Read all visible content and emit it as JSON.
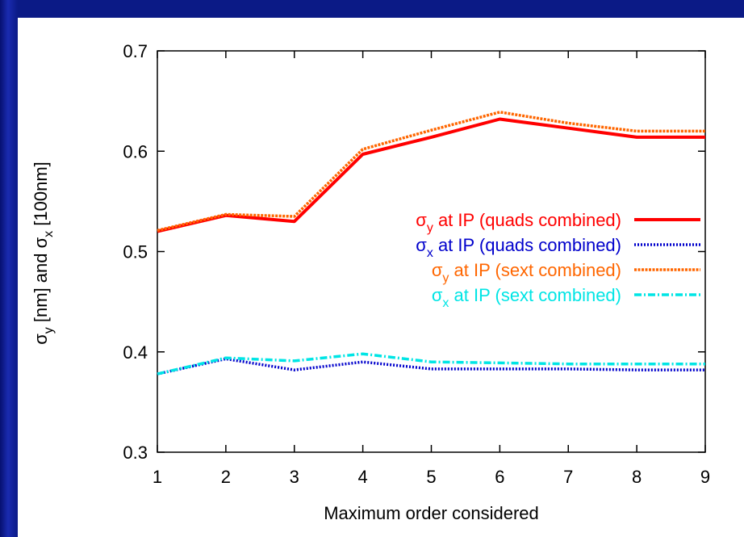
{
  "chart_data": {
    "type": "line",
    "title": "",
    "xlabel": "Maximum order considered",
    "ylabel_parts": [
      "σ",
      "y",
      " [nm] and  σ",
      "x",
      " [100nm]"
    ],
    "xlim": [
      1,
      9
    ],
    "ylim": [
      0.3,
      0.7
    ],
    "x_ticks": [
      1,
      2,
      3,
      4,
      5,
      6,
      7,
      8,
      9
    ],
    "y_ticks": [
      0.3,
      0.4,
      0.5,
      0.6,
      0.7
    ],
    "y_tick_labels": [
      "0.3",
      "0.4",
      "0.5",
      "0.6",
      "0.7"
    ],
    "grid": false,
    "legend_position": "right",
    "x": [
      1,
      2,
      3,
      4,
      5,
      6,
      7,
      8,
      9
    ],
    "series": [
      {
        "name_parts": [
          "σ",
          "y",
          " at IP (quads combined)"
        ],
        "color": "#ff0000",
        "style": "solid",
        "values": [
          0.52,
          0.536,
          0.53,
          0.597,
          0.614,
          0.632,
          0.623,
          0.614,
          0.614
        ]
      },
      {
        "name_parts": [
          "σ",
          "x",
          "  at IP (quads combined)"
        ],
        "color": "#0000cc",
        "style": "dotted",
        "values": [
          0.378,
          0.393,
          0.382,
          0.39,
          0.383,
          0.383,
          0.383,
          0.382,
          0.382
        ]
      },
      {
        "name_parts": [
          "σ",
          "y",
          " at IP (sext combined)"
        ],
        "color": "#ff6600",
        "style": "dashed",
        "values": [
          0.521,
          0.537,
          0.535,
          0.602,
          0.621,
          0.639,
          0.628,
          0.62,
          0.62
        ]
      },
      {
        "name_parts": [
          "σ",
          "x",
          "  at IP (sext combined)"
        ],
        "color": "#00e5e5",
        "style": "dashdot",
        "values": [
          0.378,
          0.394,
          0.391,
          0.398,
          0.39,
          0.389,
          0.388,
          0.388,
          0.388
        ]
      }
    ]
  }
}
